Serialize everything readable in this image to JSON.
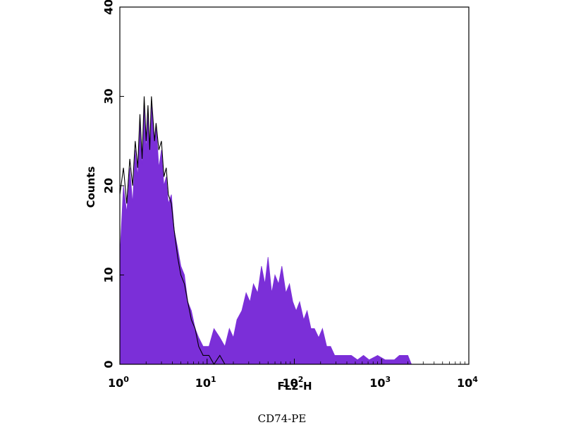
{
  "chart_data": {
    "type": "area",
    "x_scale": "log",
    "xlim": [
      1,
      10000
    ],
    "ylim": [
      0,
      40
    ],
    "ylabel": "Counts",
    "xlabel": "FL2-H",
    "caption": "CD74-PE",
    "y_ticks": [
      "0",
      "10",
      "20",
      "30",
      "40"
    ],
    "x_ticks": [
      {
        "base": "10",
        "exp": "0",
        "value": 1
      },
      {
        "base": "10",
        "exp": "1",
        "value": 10
      },
      {
        "base": "10",
        "exp": "2",
        "value": 100
      },
      {
        "base": "10",
        "exp": "3",
        "value": 1000
      },
      {
        "base": "10",
        "exp": "4",
        "value": 10000
      }
    ],
    "grid": false,
    "series": [
      {
        "style": "filled",
        "color": "#7b2fd8",
        "points": [
          [
            1.0,
            12
          ],
          [
            1.1,
            20
          ],
          [
            1.2,
            17
          ],
          [
            1.3,
            22
          ],
          [
            1.4,
            18
          ],
          [
            1.5,
            24
          ],
          [
            1.6,
            21
          ],
          [
            1.7,
            27
          ],
          [
            1.8,
            22
          ],
          [
            1.9,
            29
          ],
          [
            2.0,
            24
          ],
          [
            2.1,
            28
          ],
          [
            2.2,
            23
          ],
          [
            2.3,
            29
          ],
          [
            2.5,
            25
          ],
          [
            2.6,
            27
          ],
          [
            2.8,
            22
          ],
          [
            3.0,
            24
          ],
          [
            3.2,
            20
          ],
          [
            3.4,
            21
          ],
          [
            3.6,
            18
          ],
          [
            3.9,
            19
          ],
          [
            4.2,
            15
          ],
          [
            4.6,
            13
          ],
          [
            5.0,
            11
          ],
          [
            5.5,
            10
          ],
          [
            6.0,
            7
          ],
          [
            6.6,
            6
          ],
          [
            7.3,
            4
          ],
          [
            8.0,
            3
          ],
          [
            9.0,
            2
          ],
          [
            10.5,
            2
          ],
          [
            12,
            4
          ],
          [
            14,
            3
          ],
          [
            16,
            2
          ],
          [
            18,
            4
          ],
          [
            20,
            3
          ],
          [
            22,
            5
          ],
          [
            25,
            6
          ],
          [
            28,
            8
          ],
          [
            31,
            7
          ],
          [
            34,
            9
          ],
          [
            38,
            8
          ],
          [
            42,
            11
          ],
          [
            46,
            9
          ],
          [
            50,
            12
          ],
          [
            55,
            8
          ],
          [
            60,
            10
          ],
          [
            66,
            9
          ],
          [
            72,
            11
          ],
          [
            80,
            8
          ],
          [
            88,
            9
          ],
          [
            96,
            7
          ],
          [
            105,
            6
          ],
          [
            115,
            7
          ],
          [
            128,
            5
          ],
          [
            140,
            6
          ],
          [
            155,
            4
          ],
          [
            170,
            4
          ],
          [
            190,
            3
          ],
          [
            210,
            4
          ],
          [
            235,
            2
          ],
          [
            260,
            2
          ],
          [
            290,
            1
          ],
          [
            330,
            1
          ],
          [
            380,
            1
          ],
          [
            450,
            1
          ],
          [
            530,
            0.5
          ],
          [
            620,
            1
          ],
          [
            720,
            0.5
          ],
          [
            900,
            1
          ],
          [
            1100,
            0.5
          ],
          [
            1400,
            0.5
          ],
          [
            1600,
            1
          ],
          [
            2000,
            1
          ],
          [
            2200,
            0
          ]
        ]
      },
      {
        "style": "outline",
        "color": "#000000",
        "points": [
          [
            1.0,
            19
          ],
          [
            1.1,
            22
          ],
          [
            1.2,
            18
          ],
          [
            1.3,
            23
          ],
          [
            1.4,
            20
          ],
          [
            1.5,
            25
          ],
          [
            1.6,
            22
          ],
          [
            1.7,
            28
          ],
          [
            1.8,
            23
          ],
          [
            1.9,
            30
          ],
          [
            2.0,
            25
          ],
          [
            2.1,
            29
          ],
          [
            2.2,
            24
          ],
          [
            2.3,
            30
          ],
          [
            2.5,
            25
          ],
          [
            2.6,
            27
          ],
          [
            2.8,
            24
          ],
          [
            3.0,
            25
          ],
          [
            3.2,
            21
          ],
          [
            3.4,
            22
          ],
          [
            3.6,
            19
          ],
          [
            3.9,
            18
          ],
          [
            4.2,
            15
          ],
          [
            4.6,
            12
          ],
          [
            5.0,
            10
          ],
          [
            5.5,
            9
          ],
          [
            6.0,
            7
          ],
          [
            6.6,
            5
          ],
          [
            7.3,
            4
          ],
          [
            8.0,
            2
          ],
          [
            9.0,
            1
          ],
          [
            10.5,
            1
          ],
          [
            12,
            0
          ],
          [
            14,
            1
          ],
          [
            16,
            0
          ],
          [
            18,
            0
          ]
        ]
      }
    ]
  }
}
